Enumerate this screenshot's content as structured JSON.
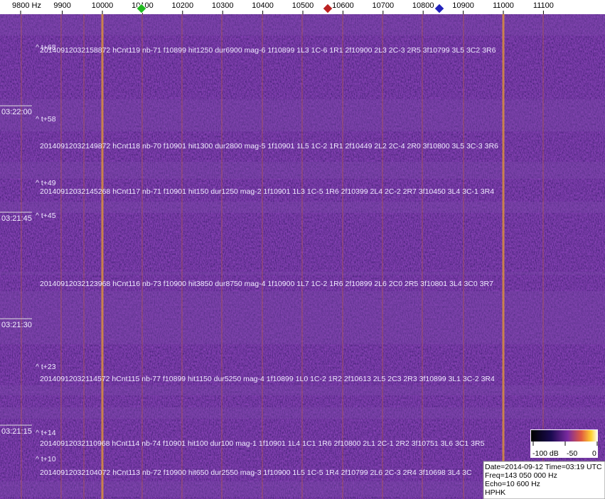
{
  "axis": {
    "ticks": [
      "9800 Hz",
      "9900",
      "10000",
      "10100",
      "10200",
      "10300",
      "10400",
      "10500",
      "10600",
      "10700",
      "10800",
      "10900",
      "11000",
      "11100"
    ]
  },
  "times": [
    "03:22:00",
    "03:21:45",
    "03:21:30",
    "03:21:15"
  ],
  "markers": [
    "^ t+68",
    "^ t+58",
    "^ t+49",
    "^ t+45",
    "^ t+23",
    "^ t+14",
    "^ t+10"
  ],
  "events": [
    "20140912032158872 hCnt119 nb-71 f10899 hit1250 dur6900 mag-6 1f10899 1L3 1C-6 1R1 2f10900 2L3 2C-3 2R5 3f10799 3L5 3C2 3R6",
    "20140912032149872 hCnt118 nb-70 f10901 hit1300 dur2800 mag-5 1f10901 1L5 1C-2 1R1 2f10449 2L2 2C-4 2R0 3f10800 3L5 3C-3 3R6",
    "20140912032145268 hCnt117 nb-71 f10901 hit150 dur1250 mag-2 1f10901 1L3 1C-5 1R6 2f10399 2L4 2C-2 2R7 3f10450 3L4 3C-1 3R4",
    "20140912032123968 hCnt116 nb-73 f10900 hit3850 dur8750 mag-4 1f10900 1L7 1C-2 1R6 2f10899 2L6 2C0 2R5 3f10801 3L4 3C0 3R7",
    "20140912032114572 hCnt115 nb-77 f10899 hit1150 dur5250 mag-4 1f10899 1L0 1C-2 1R2 2f10613 2L5 2C3 2R3 3f10899 3L1 3C-2 3R4",
    "20140912032110968 hCnt114 nb-74 f10901 hit100 dur100 mag-1 1f10901 1L4 1C1 1R6 2f10800 2L1 2C-1 2R2 3f10751 3L6 3C1 3R5",
    "20140912032104072 hCnt113 nb-72 f10900 hit650 dur2550 mag-3 1f10900 1L5 1C-5 1R4 2f10799 2L6 2C-3 2R4 3f10698 3L4 3C"
  ],
  "colorbar": {
    "labels": [
      "-100 dB",
      "-50",
      "0"
    ]
  },
  "info": {
    "lines": [
      "Date=2014-09-12 Time=03:19 UTC",
      "Freq=143 050 000 Hz",
      "Echo=10 600 Hz",
      "HPHK"
    ]
  }
}
